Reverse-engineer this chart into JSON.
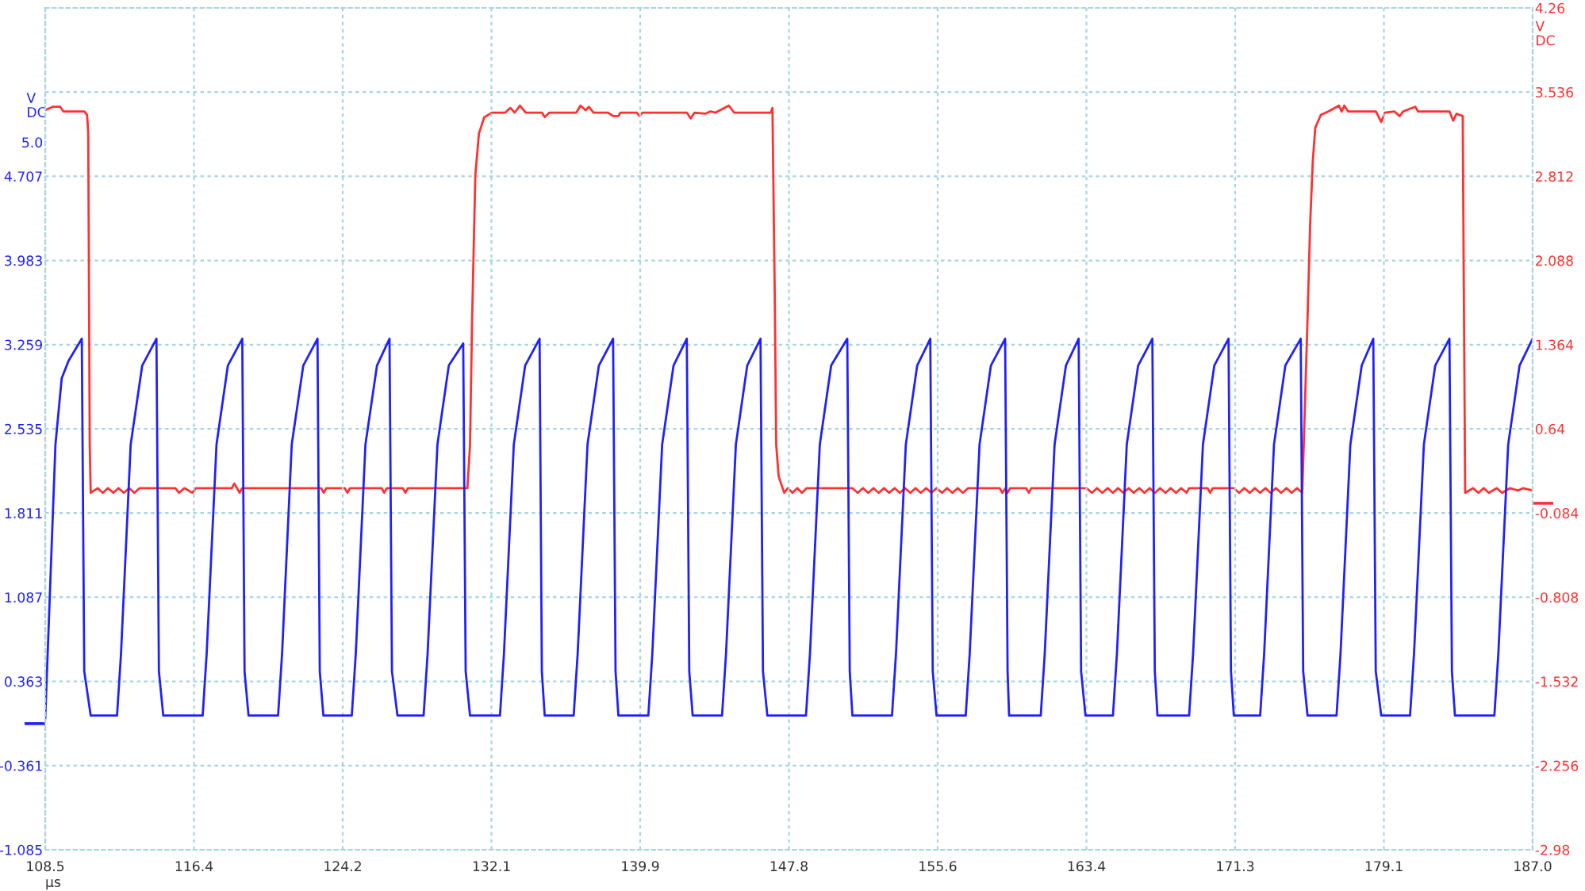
{
  "chart_data": {
    "type": "line",
    "xlabel": "µs",
    "ylabel": "V\nDC",
    "y2label": "V\nDC",
    "xlim": [
      108.5,
      187
    ],
    "xticks": [
      108.5,
      {
        "value": 116.35,
        "label": "116.4"
      },
      124.2,
      {
        "value": 132.05,
        "label": "132.1"
      },
      139.9,
      {
        "value": 147.75,
        "label": "147.8"
      },
      155.6,
      {
        "value": 163.45,
        "label": "163.4"
      },
      171.3,
      {
        "value": 179.15,
        "label": "179.1"
      },
      {
        "value": 187,
        "label": "187.0"
      }
    ],
    "ylim": [
      -1.085,
      6.155
    ],
    "yticks": [
      -1.085,
      -0.361,
      {
        "value": 0,
        "label": null
      },
      0.363,
      1.087,
      1.811,
      2.535,
      3.259,
      3.983,
      4.707,
      {
        "value": 5,
        "label": "5.0"
      }
    ],
    "y2lim": [
      -2.98,
      4.26
    ],
    "y2ticks": [
      -2.98,
      -2.256,
      -1.532,
      -0.808,
      -0.084,
      {
        "value": 0,
        "label": null
      },
      0.64,
      1.364,
      2.088,
      2.812,
      3.536,
      4.26
    ],
    "grid": true,
    "marker": "none",
    "line_style": "solid",
    "series": [
      {
        "color": "#2020ff",
        "x": [
          108.5,
          109.04,
          109.37,
          109.73,
          110.43,
          110.56,
          110.9,
          112.29,
          112.5,
          113.01,
          113.62,
          114.37,
          114.5,
          114.73,
          116.81,
          117.02,
          117.54,
          118.14,
          118.9,
          119.02,
          119.23,
          120.79,
          121.0,
          121.51,
          122.12,
          122.87,
          122.99,
          123.18,
          124.68,
          124.89,
          125.4,
          126.01,
          126.67,
          126.8,
          127.09,
          128.47,
          128.68,
          129.2,
          129.8,
          130.56,
          130.69,
          130.92,
          132.5,
          132.71,
          133.23,
          133.83,
          134.59,
          134.71,
          134.86,
          136.39,
          136.6,
          137.12,
          137.72,
          138.47,
          138.6,
          138.75,
          140.33,
          140.54,
          141.06,
          141.66,
          142.36,
          142.49,
          142.67,
          144.22,
          144.43,
          144.95,
          145.55,
          146.25,
          146.38,
          146.61,
          148.65,
          148.86,
          149.38,
          149.98,
          150.83,
          150.96,
          151.1,
          153.19,
          153.4,
          153.92,
          154.52,
          155.21,
          155.34,
          155.54,
          157.08,
          157.29,
          157.81,
          158.41,
          159.16,
          159.29,
          159.37,
          161.04,
          161.25,
          161.77,
          162.37,
          163.04,
          163.17,
          163.4,
          164.85,
          165.06,
          165.58,
          166.18,
          166.93,
          167.06,
          167.2,
          168.87,
          169.08,
          169.6,
          170.2,
          170.95,
          171.08,
          171.23,
          172.62,
          172.83,
          173.35,
          173.95,
          174.76,
          174.89,
          175.12,
          176.65,
          176.86,
          177.38,
          177.98,
          178.59,
          178.72,
          179.01,
          180.53,
          180.74,
          181.26,
          181.86,
          182.61,
          182.74,
          182.9,
          184.98,
          185.19,
          185.71,
          186.31,
          187.0
        ],
        "values": [
          0.04,
          2.4,
          2.97,
          3.12,
          3.31,
          0.45,
          0.07,
          0.07,
          0.6,
          2.4,
          3.08,
          3.31,
          0.45,
          0.07,
          0.07,
          0.6,
          2.4,
          3.08,
          3.31,
          0.45,
          0.07,
          0.07,
          0.6,
          2.4,
          3.08,
          3.31,
          0.45,
          0.07,
          0.07,
          0.6,
          2.4,
          3.08,
          3.31,
          0.45,
          0.07,
          0.07,
          0.6,
          2.4,
          3.08,
          3.27,
          0.45,
          0.07,
          0.07,
          0.6,
          2.4,
          3.08,
          3.31,
          0.45,
          0.07,
          0.07,
          0.6,
          2.4,
          3.08,
          3.31,
          0.45,
          0.07,
          0.07,
          0.6,
          2.4,
          3.08,
          3.31,
          0.45,
          0.07,
          0.07,
          0.6,
          2.4,
          3.08,
          3.31,
          0.45,
          0.07,
          0.07,
          0.6,
          2.4,
          3.08,
          3.31,
          0.45,
          0.07,
          0.07,
          0.6,
          2.4,
          3.08,
          3.31,
          0.45,
          0.07,
          0.07,
          0.6,
          2.4,
          3.08,
          3.31,
          0.45,
          0.07,
          0.07,
          0.6,
          2.4,
          3.08,
          3.31,
          0.45,
          0.07,
          0.07,
          0.6,
          2.4,
          3.08,
          3.31,
          0.45,
          0.07,
          0.07,
          0.6,
          2.4,
          3.08,
          3.31,
          0.45,
          0.07,
          0.07,
          0.6,
          2.4,
          3.08,
          3.31,
          0.45,
          0.07,
          0.07,
          0.6,
          2.4,
          3.08,
          3.31,
          0.45,
          0.07,
          0.07,
          0.6,
          2.4,
          3.08,
          3.31,
          0.45,
          0.07,
          0.07,
          0.6,
          2.4,
          3.08,
          3.31
        ]
      },
      {
        "color": "#ff3030",
        "axis": "y2",
        "x": [
          108.5,
          108.9,
          109.29,
          109.46,
          110.57,
          110.71,
          110.77,
          110.85,
          110.9,
          111.27,
          111.54,
          111.81,
          112.1,
          112.37,
          112.65,
          112.93,
          113.21,
          113.48,
          115.37,
          115.56,
          115.85,
          116.26,
          116.45,
          118.35,
          118.48,
          118.76,
          118.89,
          123.06,
          123.2,
          123.34,
          124.31,
          124.45,
          124.59,
          126.26,
          126.39,
          126.53,
          127.37,
          127.51,
          127.64,
          130.78,
          130.92,
          131.03,
          131.2,
          131.39,
          131.67,
          132.09,
          132.78,
          133.05,
          133.28,
          133.55,
          133.86,
          134.72,
          134.86,
          135.11,
          136.53,
          136.75,
          137.03,
          137.19,
          137.44,
          138.19,
          138.47,
          138.75,
          138.86,
          139.72,
          139.86,
          140.03,
          142.36,
          142.57,
          142.77,
          143.33,
          143.61,
          143.88,
          144.58,
          144.86,
          146.8,
          146.88,
          147.0,
          147.08,
          147.21,
          147.5,
          147.69,
          147.94,
          148.19,
          148.44,
          148.69,
          151.1,
          151.38,
          151.66,
          151.94,
          152.21,
          152.49,
          152.77,
          153.04,
          153.33,
          153.6,
          153.88,
          154.16,
          154.43,
          154.71,
          154.99,
          155.27,
          155.54,
          155.83,
          156.1,
          156.38,
          156.66,
          156.93,
          157.21,
          158.87,
          159.02,
          159.18,
          159.29,
          159.43,
          160.27,
          160.41,
          160.54,
          163.46,
          163.74,
          164.01,
          164.29,
          164.57,
          164.85,
          165.12,
          165.4,
          165.68,
          165.95,
          166.24,
          166.51,
          166.79,
          167.07,
          167.34,
          167.62,
          167.9,
          168.18,
          168.45,
          168.74,
          168.87,
          169.84,
          169.98,
          170.12,
          171.23,
          171.51,
          171.78,
          172.07,
          172.34,
          172.62,
          172.9,
          173.17,
          173.45,
          173.73,
          174.01,
          174.28,
          174.57,
          174.84,
          174.92,
          175.12,
          175.26,
          175.4,
          175.53,
          175.82,
          176.23,
          176.78,
          176.92,
          177.06,
          177.26,
          178.73,
          179.01,
          179.2,
          179.7,
          179.98,
          180.17,
          180.81,
          180.95,
          182.61,
          182.81,
          182.98,
          183.31,
          183.36,
          183.44,
          183.86,
          184.14,
          184.42,
          184.69,
          185.11,
          185.39,
          185.81,
          186.23,
          186.5,
          187.0
        ],
        "values": [
          3.38,
          3.41,
          3.41,
          3.37,
          3.37,
          3.34,
          3.19,
          0.5,
          0.09,
          0.13,
          0.09,
          0.13,
          0.09,
          0.13,
          0.09,
          0.13,
          0.09,
          0.13,
          0.13,
          0.09,
          0.13,
          0.09,
          0.13,
          0.13,
          0.17,
          0.09,
          0.13,
          0.13,
          0.09,
          0.13,
          0.13,
          0.09,
          0.13,
          0.13,
          0.09,
          0.13,
          0.13,
          0.09,
          0.13,
          0.13,
          0.5,
          1.59,
          2.82,
          3.18,
          3.32,
          3.36,
          3.36,
          3.4,
          3.36,
          3.42,
          3.36,
          3.36,
          3.32,
          3.36,
          3.36,
          3.42,
          3.38,
          3.41,
          3.36,
          3.36,
          3.33,
          3.33,
          3.36,
          3.36,
          3.33,
          3.36,
          3.36,
          3.31,
          3.36,
          3.35,
          3.37,
          3.36,
          3.42,
          3.36,
          3.36,
          3.4,
          1.82,
          0.5,
          0.23,
          0.09,
          0.13,
          0.09,
          0.13,
          0.09,
          0.13,
          0.13,
          0.09,
          0.13,
          0.09,
          0.13,
          0.09,
          0.13,
          0.09,
          0.13,
          0.09,
          0.13,
          0.09,
          0.13,
          0.09,
          0.13,
          0.09,
          0.13,
          0.09,
          0.13,
          0.09,
          0.13,
          0.09,
          0.13,
          0.13,
          0.09,
          0.13,
          0.09,
          0.13,
          0.13,
          0.09,
          0.13,
          0.13,
          0.09,
          0.13,
          0.09,
          0.13,
          0.09,
          0.13,
          0.09,
          0.13,
          0.09,
          0.13,
          0.09,
          0.13,
          0.09,
          0.13,
          0.09,
          0.13,
          0.09,
          0.13,
          0.09,
          0.13,
          0.13,
          0.09,
          0.13,
          0.13,
          0.09,
          0.13,
          0.09,
          0.13,
          0.09,
          0.13,
          0.09,
          0.13,
          0.09,
          0.13,
          0.09,
          0.13,
          0.09,
          0.5,
          1.59,
          2.41,
          2.95,
          3.23,
          3.34,
          3.37,
          3.42,
          3.37,
          3.42,
          3.37,
          3.37,
          3.28,
          3.36,
          3.37,
          3.33,
          3.37,
          3.41,
          3.37,
          3.37,
          3.29,
          3.35,
          3.33,
          2.05,
          0.09,
          0.13,
          0.09,
          0.13,
          0.09,
          0.13,
          0.09,
          0.13,
          0.11,
          0.13,
          0.11
        ]
      }
    ]
  }
}
